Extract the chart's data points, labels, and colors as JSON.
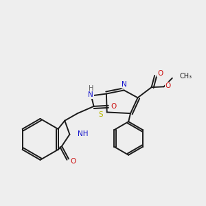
{
  "background_color": "#eeeeee",
  "bond_color": "#1a1a1a",
  "atom_colors": {
    "N": "#1010cc",
    "O": "#cc1010",
    "S": "#b8b800",
    "H": "#606060",
    "C": "#1a1a1a"
  },
  "figsize": [
    3.0,
    3.0
  ],
  "dpi": 100,
  "xlim": [
    0,
    10.5
  ],
  "ylim": [
    0,
    10.5
  ]
}
